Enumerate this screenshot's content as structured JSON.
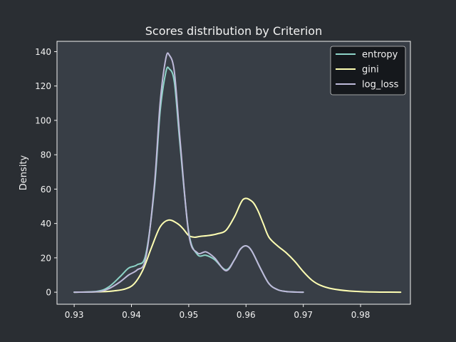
{
  "chart_data": {
    "type": "line",
    "title": "Scores distribution by Criterion",
    "xlabel": "",
    "ylabel": "Density",
    "xlim": [
      0.927,
      0.9887
    ],
    "ylim": [
      -7,
      146
    ],
    "x_ticks": [
      0.93,
      0.94,
      0.95,
      0.96,
      0.97,
      0.98
    ],
    "y_ticks": [
      0,
      20,
      40,
      60,
      80,
      100,
      120,
      140
    ],
    "legend_position": "top-right",
    "grid": false,
    "series": [
      {
        "name": "entropy",
        "color": "#8dd3c7",
        "x": [
          0.93,
          0.934,
          0.936,
          0.938,
          0.9395,
          0.941,
          0.9425,
          0.944,
          0.945,
          0.946,
          0.9466,
          0.9475,
          0.9485,
          0.95,
          0.9515,
          0.953,
          0.9545,
          0.9565,
          0.958,
          0.959,
          0.96,
          0.961,
          0.9625,
          0.964,
          0.9655,
          0.967,
          0.9685,
          0.97
        ],
        "y": [
          0,
          0.5,
          3,
          9,
          14,
          16,
          22,
          60,
          105,
          128,
          130,
          122,
          85,
          35,
          22,
          21.5,
          19,
          13,
          19,
          25,
          27,
          24,
          14,
          5,
          1.5,
          0.4,
          0.1,
          0
        ]
      },
      {
        "name": "gini",
        "color": "#ffffb3",
        "x": [
          0.93,
          0.935,
          0.937,
          0.939,
          0.9405,
          0.942,
          0.9435,
          0.945,
          0.9465,
          0.948,
          0.949,
          0.95,
          0.951,
          0.952,
          0.9535,
          0.955,
          0.9565,
          0.958,
          0.9595,
          0.961,
          0.962,
          0.963,
          0.964,
          0.9655,
          0.967,
          0.9685,
          0.97,
          0.9715,
          0.973,
          0.975,
          0.978,
          0.981,
          0.984,
          0.987
        ],
        "y": [
          0,
          0.3,
          0.8,
          2,
          5,
          13,
          26,
          38,
          42,
          40,
          37,
          33,
          32,
          32.5,
          33,
          34,
          36,
          44,
          54,
          53,
          48,
          40,
          32,
          27,
          23,
          18,
          12,
          7,
          4,
          2,
          0.7,
          0.2,
          0.05,
          0
        ]
      },
      {
        "name": "log_loss",
        "color": "#bebada",
        "x": [
          0.93,
          0.934,
          0.936,
          0.938,
          0.9395,
          0.941,
          0.9425,
          0.944,
          0.945,
          0.946,
          0.9466,
          0.9475,
          0.9485,
          0.95,
          0.9515,
          0.953,
          0.9545,
          0.9565,
          0.958,
          0.959,
          0.96,
          0.961,
          0.9625,
          0.964,
          0.9655,
          0.967,
          0.9685,
          0.97
        ],
        "y": [
          0,
          0.3,
          2,
          6,
          10,
          13,
          20,
          62,
          110,
          136,
          138,
          128,
          88,
          34,
          23,
          23.5,
          20,
          12.5,
          19,
          25,
          27,
          24,
          14,
          5,
          1.5,
          0.4,
          0.1,
          0
        ]
      }
    ]
  },
  "style": {
    "figure_bg": "#2a2e33",
    "axes_bg": "#383e46",
    "text_color": "#f2f2f2",
    "legend_bg": "#0d0f12"
  }
}
